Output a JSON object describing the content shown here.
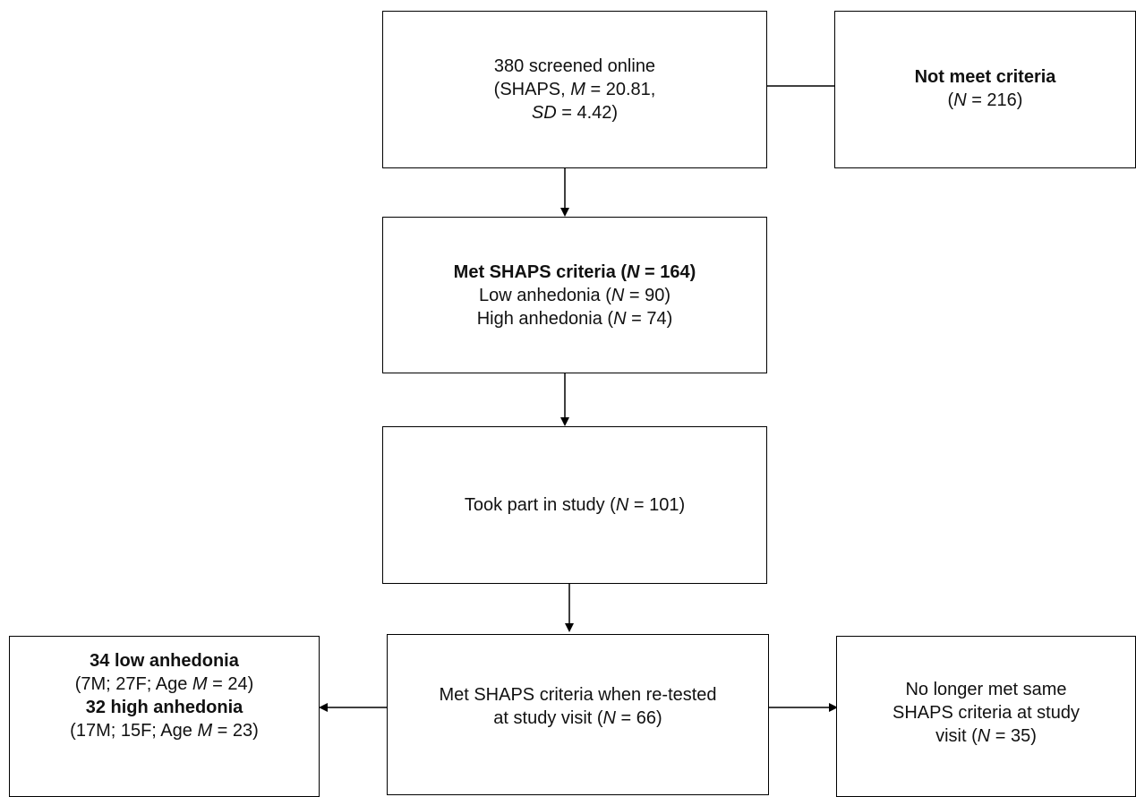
{
  "boxes": {
    "screened": {
      "lines": [
        [
          {
            "t": "380 screened online"
          }
        ],
        [
          {
            "t": "(SHAPS, "
          },
          {
            "t": "M",
            "i": true
          },
          {
            "t": " = 20.81,"
          }
        ],
        [
          {
            "t": "SD",
            "i": true
          },
          {
            "t": " = 4.42)"
          }
        ]
      ]
    },
    "not_meet": {
      "lines": [
        [
          {
            "t": "Not meet criteria",
            "b": true
          }
        ],
        [
          {
            "t": "("
          },
          {
            "t": "N",
            "i": true
          },
          {
            "t": " = 216)"
          }
        ]
      ]
    },
    "met_shaps": {
      "lines": [
        [
          {
            "t": "Met SHAPS criteria (",
            "b": true
          },
          {
            "t": "N",
            "b": true,
            "i": true
          },
          {
            "t": " = 164)",
            "b": true
          }
        ],
        [
          {
            "t": "Low anhedonia ("
          },
          {
            "t": "N",
            "i": true
          },
          {
            "t": " = 90)"
          }
        ],
        [
          {
            "t": "High anhedonia ("
          },
          {
            "t": "N",
            "i": true
          },
          {
            "t": " = 74)"
          }
        ]
      ]
    },
    "took_part": {
      "lines": [
        [
          {
            "t": "Took part in study ("
          },
          {
            "t": "N",
            "i": true
          },
          {
            "t": " = 101)"
          }
        ]
      ]
    },
    "retested": {
      "lines": [
        [
          {
            "t": "Met SHAPS criteria when re-tested"
          }
        ],
        [
          {
            "t": "at study visit  ("
          },
          {
            "t": "N",
            "i": true
          },
          {
            "t": " = 66)"
          }
        ]
      ]
    },
    "groups": {
      "lines": [
        [
          {
            "t": "34 low anhedonia",
            "b": true
          }
        ],
        [
          {
            "t": "(7M; 27F; Age "
          },
          {
            "t": "M",
            "i": true
          },
          {
            "t": " = 24)"
          }
        ],
        [
          {
            "t": "32 high anhedonia",
            "b": true
          }
        ],
        [
          {
            "t": "(17M; 15F; Age "
          },
          {
            "t": "M",
            "i": true
          },
          {
            "t": " = 23)"
          }
        ]
      ]
    },
    "no_longer": {
      "lines": [
        [
          {
            "t": "No longer met same"
          }
        ],
        [
          {
            "t": "SHAPS criteria at study"
          }
        ],
        [
          {
            "t": "visit  ("
          },
          {
            "t": "N",
            "i": true
          },
          {
            "t": " = 35)"
          }
        ]
      ]
    }
  }
}
